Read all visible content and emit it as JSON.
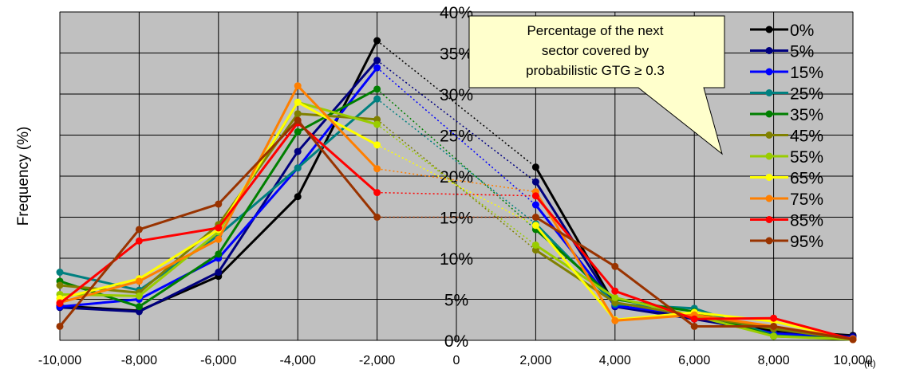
{
  "chart_data": {
    "type": "line",
    "ylabel": "Frequency (%)",
    "x_unit": "(ft)",
    "xlim": [
      -10000,
      10000
    ],
    "ylim": [
      0,
      40
    ],
    "x_ticks": [
      "-10,000",
      "-8,000",
      "-6,000",
      "-4,000",
      "-2,000",
      "0",
      "2,000",
      "4,000",
      "6,000",
      "8,000",
      "10,000"
    ],
    "y_ticks": [
      "0%",
      "5%",
      "10%",
      "15%",
      "20%",
      "25%",
      "30%",
      "35%",
      "40%"
    ],
    "grid": "major y and x gridlines",
    "legend": "right",
    "annotation": {
      "lines": [
        "Percentage of the next",
        "sector covered by",
        "probabilistic GTG ≥ 0.3"
      ]
    },
    "note": "dotted lines connect the -2,000 and 2,000 points of each series",
    "x": [
      -10000,
      -8000,
      -6000,
      -4000,
      -2000,
      2000,
      4000,
      6000,
      8000,
      10000
    ],
    "series": [
      {
        "name": "0%",
        "color": "#000000",
        "values": [
          4.2,
          3.6,
          7.8,
          17.5,
          36.5,
          21.1,
          4.3,
          2.6,
          1.2,
          0.6
        ]
      },
      {
        "name": "5%",
        "color": "#00007f",
        "values": [
          4.0,
          3.5,
          8.3,
          23.0,
          34.1,
          19.3,
          4.1,
          2.6,
          0.9,
          0.5
        ]
      },
      {
        "name": "15%",
        "color": "#0000ff",
        "values": [
          4.1,
          5.0,
          10.0,
          21.0,
          33.2,
          16.5,
          4.2,
          3.1,
          0.8,
          0.3
        ]
      },
      {
        "name": "25%",
        "color": "#008080",
        "values": [
          8.3,
          6.1,
          12.8,
          21.0,
          29.4,
          14.2,
          4.4,
          3.9,
          0.6,
          0.1
        ]
      },
      {
        "name": "35%",
        "color": "#007f00",
        "values": [
          7.2,
          4.1,
          10.5,
          25.4,
          30.6,
          13.5,
          5.0,
          3.5,
          0.5,
          0.2
        ]
      },
      {
        "name": "45%",
        "color": "#808000",
        "values": [
          6.7,
          5.8,
          14.1,
          27.6,
          26.9,
          11.0,
          4.6,
          3.0,
          1.4,
          0.1
        ]
      },
      {
        "name": "55%",
        "color": "#99cc00",
        "values": [
          5.6,
          5.4,
          13.2,
          29.0,
          26.3,
          11.6,
          5.2,
          3.0,
          0.5,
          0.1
        ]
      },
      {
        "name": "65%",
        "color": "#ffff00",
        "values": [
          5.1,
          7.5,
          13.5,
          29.0,
          23.8,
          14.0,
          2.5,
          3.4,
          2.3,
          0.1
        ]
      },
      {
        "name": "75%",
        "color": "#ff7f00",
        "values": [
          4.6,
          7.2,
          12.3,
          31.0,
          20.9,
          18.1,
          2.4,
          3.1,
          1.7,
          0.2
        ]
      },
      {
        "name": "85%",
        "color": "#ff0000",
        "values": [
          4.5,
          12.1,
          13.7,
          26.5,
          18.0,
          17.6,
          6.0,
          2.6,
          2.7,
          0.1
        ]
      },
      {
        "name": "95%",
        "color": "#993300",
        "values": [
          1.7,
          13.5,
          16.6,
          26.8,
          15.0,
          15.0,
          9.0,
          1.7,
          1.7,
          0.1
        ]
      }
    ]
  },
  "colors": {
    "plot_background": "#c0c0c0",
    "gridline": "#000000",
    "callout_fill": "#ffffcc"
  }
}
